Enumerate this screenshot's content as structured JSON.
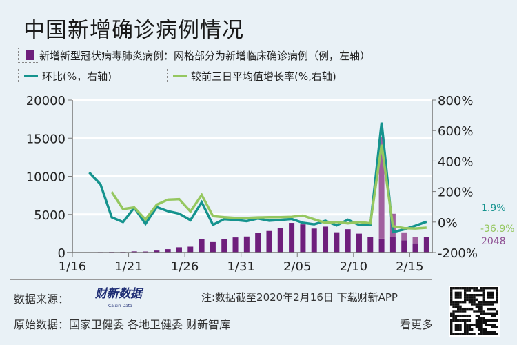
{
  "title": "中国新增确诊病例情况",
  "legend": {
    "bars": "新增新型冠状病毒肺炎病例：网格部分为新增临床确诊病例（例，左轴）",
    "ratio": "环比(%，右轴)",
    "avg3": "较前三日平均值增长率(%,右轴)"
  },
  "colors": {
    "bar": "#6e1f7c",
    "bar_clinical": "#a0609f",
    "ratio": "#15938e",
    "avg3": "#95c760",
    "background": "#e9f1f6"
  },
  "chart_data": {
    "type": "bar+line",
    "x": [
      "1/16",
      "1/17",
      "1/18",
      "1/19",
      "1/20",
      "1/21",
      "1/22",
      "1/23",
      "1/24",
      "1/25",
      "1/26",
      "1/27",
      "1/28",
      "1/29",
      "1/30",
      "1/31",
      "2/01",
      "2/02",
      "2/03",
      "2/04",
      "2/05",
      "2/06",
      "2/07",
      "2/08",
      "2/09",
      "2/10",
      "2/11",
      "2/12",
      "2/13",
      "2/14",
      "2/15",
      "2/16"
    ],
    "x_tick_labels": [
      "1/16",
      "1/21",
      "1/26",
      "1/31",
      "2/05",
      "2/10",
      "2/15"
    ],
    "left_axis": {
      "ylim": [
        0,
        20000
      ],
      "ticks": [
        "0",
        "5000",
        "10000",
        "15000",
        "20000"
      ]
    },
    "right_axis": {
      "ylim": [
        -200,
        800
      ],
      "ticks": [
        "-200%",
        "0%",
        "200%",
        "400%",
        "600%",
        "800%"
      ]
    },
    "grid": true,
    "series": [
      {
        "name": "新增新型冠状病毒肺炎病例",
        "type": "bar",
        "axis": "left",
        "values": [
          4,
          17,
          59,
          77,
          77,
          149,
          131,
          259,
          444,
          688,
          769,
          1771,
          1459,
          1737,
          1982,
          2102,
          2590,
          2829,
          3235,
          3887,
          3694,
          3143,
          3399,
          2656,
          3062,
          2478,
          2015,
          15152,
          5090,
          2641,
          2009,
          2048
        ]
      },
      {
        "name": "新增临床确诊病例",
        "type": "bar-portion",
        "axis": "left",
        "values": [
          0,
          0,
          0,
          0,
          0,
          0,
          0,
          0,
          0,
          0,
          0,
          0,
          0,
          0,
          0,
          0,
          0,
          0,
          0,
          0,
          0,
          0,
          0,
          0,
          0,
          0,
          0,
          13332,
          3095,
          1043,
          800,
          0
        ]
      },
      {
        "name": "环比",
        "type": "line",
        "axis": "right",
        "values": [
          null,
          325,
          247,
          31,
          0,
          94,
          -12,
          98,
          71,
          55,
          12,
          130,
          -18,
          19,
          14,
          6,
          23,
          9,
          14,
          20,
          -5,
          -15,
          8,
          -22,
          15,
          -19,
          -19,
          652,
          -66,
          -48,
          -24,
          1.9
        ]
      },
      {
        "name": "较前三日平均值增长率",
        "type": "line",
        "axis": "right",
        "values": [
          null,
          null,
          null,
          197,
          85,
          96,
          17,
          114,
          147,
          150,
          69,
          178,
          39,
          32,
          27,
          27,
          30,
          32,
          32,
          34,
          42,
          18,
          -5,
          0,
          -9,
          0,
          -8,
          507,
          -27,
          -40,
          -42,
          -36.9
        ]
      }
    ],
    "end_labels": {
      "ratio": "1.9%",
      "avg3": "-36.9%",
      "bar": "2048"
    }
  },
  "footer": {
    "source_label": "数据来源：",
    "logo_text": "财新数据",
    "logo_sub": "Caixin Data",
    "note": "注:数据截至2020年2月16日 下载财新APP",
    "raw_label": "原始数据：国家卫健委 各地卫健委 财新智库",
    "more": "看更多"
  }
}
